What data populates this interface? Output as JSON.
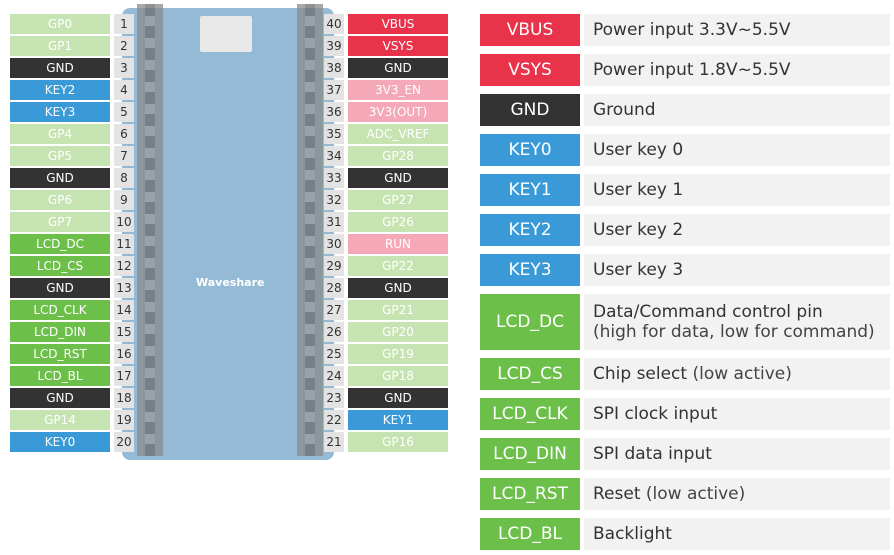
{
  "colors": {
    "gpio": "#c5e4b1",
    "lcd": "#6cc04a",
    "gnd": "#333333",
    "key": "#3a9ad8",
    "power": "#e8334a",
    "ctrl": "#f5a9b8",
    "number_bg": "#e3e3e3"
  },
  "board": {
    "brand": "Waveshare",
    "logo": "W"
  },
  "left_pins": [
    {
      "num": "1",
      "label": "GP0",
      "type": "gpio"
    },
    {
      "num": "2",
      "label": "GP1",
      "type": "gpio"
    },
    {
      "num": "3",
      "label": "GND",
      "type": "gnd"
    },
    {
      "num": "4",
      "label": "KEY2",
      "type": "key"
    },
    {
      "num": "5",
      "label": "KEY3",
      "type": "key"
    },
    {
      "num": "6",
      "label": "GP4",
      "type": "gpio"
    },
    {
      "num": "7",
      "label": "GP5",
      "type": "gpio"
    },
    {
      "num": "8",
      "label": "GND",
      "type": "gnd"
    },
    {
      "num": "9",
      "label": "GP6",
      "type": "gpio"
    },
    {
      "num": "10",
      "label": "GP7",
      "type": "gpio"
    },
    {
      "num": "11",
      "label": "LCD_DC",
      "type": "lcd"
    },
    {
      "num": "12",
      "label": "LCD_CS",
      "type": "lcd"
    },
    {
      "num": "13",
      "label": "GND",
      "type": "gnd"
    },
    {
      "num": "14",
      "label": "LCD_CLK",
      "type": "lcd"
    },
    {
      "num": "15",
      "label": "LCD_DIN",
      "type": "lcd"
    },
    {
      "num": "16",
      "label": "LCD_RST",
      "type": "lcd"
    },
    {
      "num": "17",
      "label": "LCD_BL",
      "type": "lcd"
    },
    {
      "num": "18",
      "label": "GND",
      "type": "gnd"
    },
    {
      "num": "19",
      "label": "GP14",
      "type": "gpio"
    },
    {
      "num": "20",
      "label": "KEY0",
      "type": "key"
    }
  ],
  "right_pins": [
    {
      "num": "40",
      "label": "VBUS",
      "type": "power"
    },
    {
      "num": "39",
      "label": "VSYS",
      "type": "power"
    },
    {
      "num": "38",
      "label": "GND",
      "type": "gnd"
    },
    {
      "num": "37",
      "label": "3V3_EN",
      "type": "ctrl"
    },
    {
      "num": "36",
      "label": "3V3(OUT)",
      "type": "ctrl"
    },
    {
      "num": "35",
      "label": "ADC_VREF",
      "type": "gpio"
    },
    {
      "num": "34",
      "label": "GP28",
      "type": "gpio"
    },
    {
      "num": "33",
      "label": "GND",
      "type": "gnd"
    },
    {
      "num": "32",
      "label": "GP27",
      "type": "gpio"
    },
    {
      "num": "31",
      "label": "GP26",
      "type": "gpio"
    },
    {
      "num": "30",
      "label": "RUN",
      "type": "ctrl"
    },
    {
      "num": "29",
      "label": "GP22",
      "type": "gpio"
    },
    {
      "num": "28",
      "label": "GND",
      "type": "gnd"
    },
    {
      "num": "27",
      "label": "GP21",
      "type": "gpio"
    },
    {
      "num": "26",
      "label": "GP20",
      "type": "gpio"
    },
    {
      "num": "25",
      "label": "GP19",
      "type": "gpio"
    },
    {
      "num": "24",
      "label": "GP18",
      "type": "gpio"
    },
    {
      "num": "23",
      "label": "GND",
      "type": "gnd"
    },
    {
      "num": "22",
      "label": "KEY1",
      "type": "key"
    },
    {
      "num": "21",
      "label": "GP16",
      "type": "gpio"
    }
  ],
  "legend": [
    {
      "label": "VBUS",
      "type": "power",
      "desc": "Power input 3.3V~5.5V",
      "sub": ""
    },
    {
      "label": "VSYS",
      "type": "power",
      "desc": "Power input 1.8V~5.5V",
      "sub": ""
    },
    {
      "label": "GND",
      "type": "gnd",
      "desc": "Ground",
      "sub": ""
    },
    {
      "label": "KEY0",
      "type": "key",
      "desc": "User key 0",
      "sub": ""
    },
    {
      "label": "KEY1",
      "type": "key",
      "desc": "User key 1",
      "sub": ""
    },
    {
      "label": "KEY2",
      "type": "key",
      "desc": "User key 2",
      "sub": ""
    },
    {
      "label": "KEY3",
      "type": "key",
      "desc": "User key 3",
      "sub": ""
    },
    {
      "label": "LCD_DC",
      "type": "lcd",
      "desc": "Data/Command control pin",
      "sub": "(high for data, low for command)",
      "multiline": true
    },
    {
      "label": "LCD_CS",
      "type": "lcd",
      "desc": "Chip select",
      "sub": "(low active)"
    },
    {
      "label": "LCD_CLK",
      "type": "lcd",
      "desc": "SPI clock input",
      "sub": ""
    },
    {
      "label": "LCD_DIN",
      "type": "lcd",
      "desc": "SPI data input",
      "sub": ""
    },
    {
      "label": "LCD_RST",
      "type": "lcd",
      "desc": "Reset",
      "sub": "(low active)"
    },
    {
      "label": "LCD_BL",
      "type": "lcd",
      "desc": "Backlight",
      "sub": ""
    }
  ]
}
